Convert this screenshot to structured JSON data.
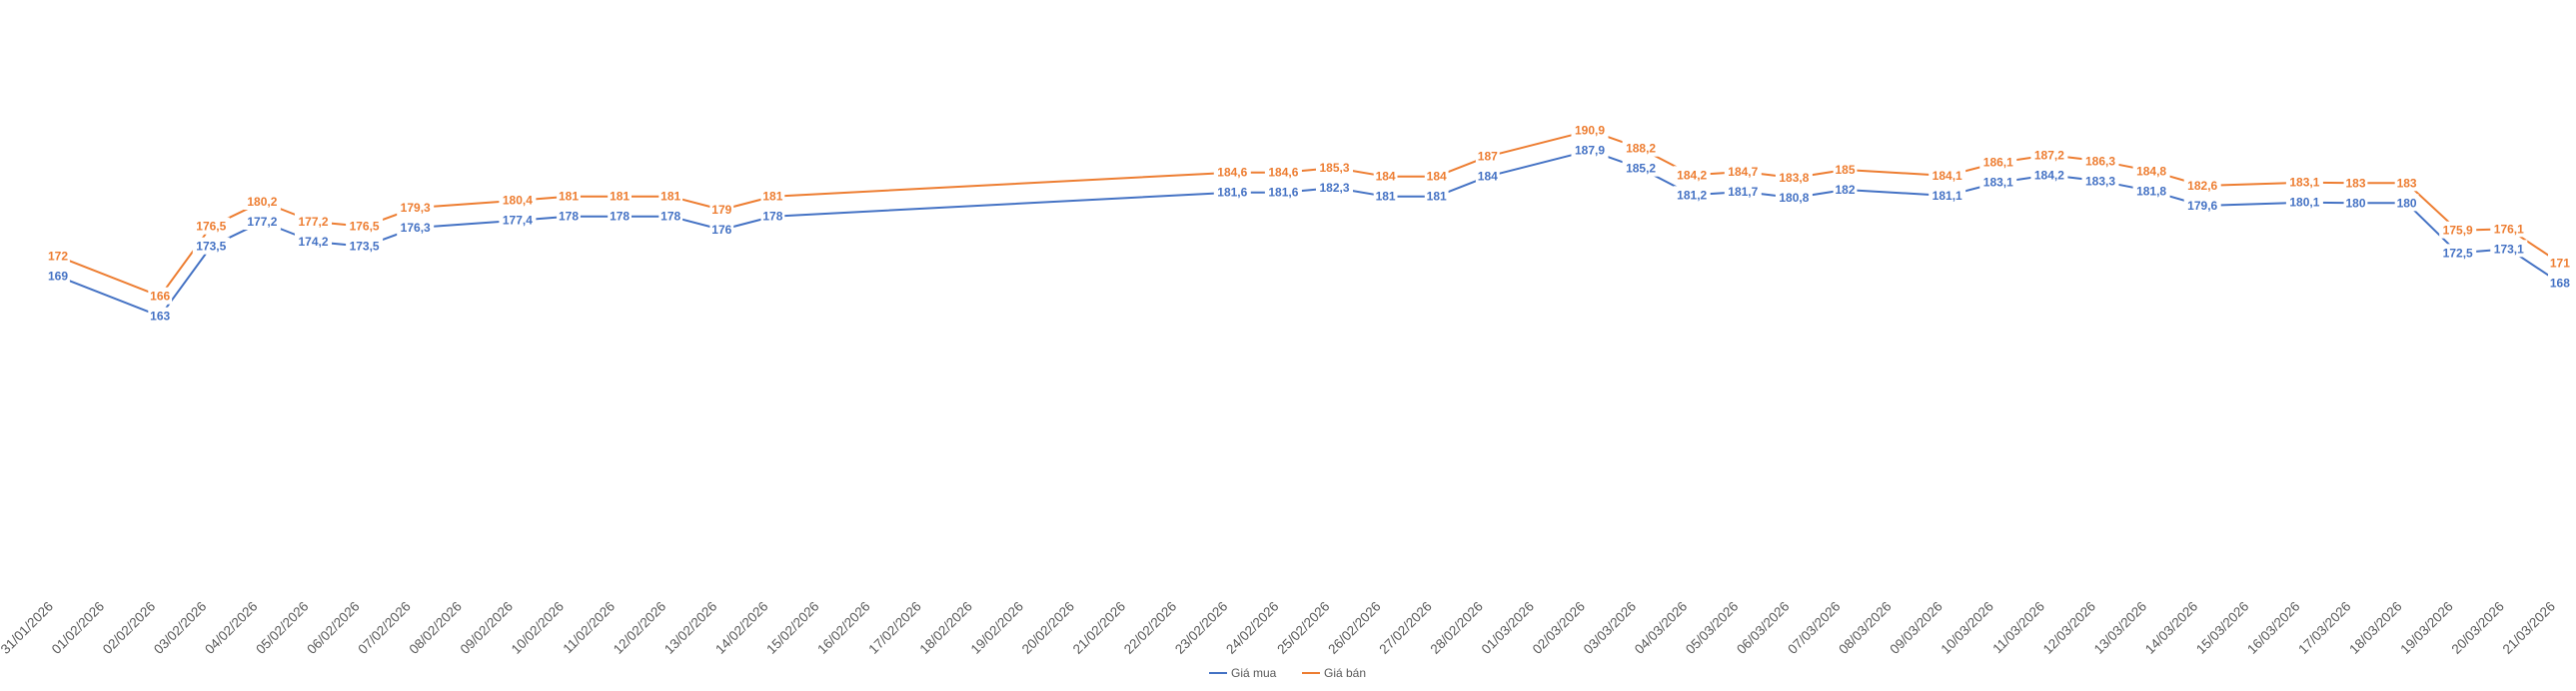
{
  "chart_data": {
    "type": "line",
    "title": "",
    "xlabel": "",
    "ylabel": "",
    "ylim": [
      125,
      200
    ],
    "grid": false,
    "legend_position": "bottom",
    "categories": [
      "31/01/2026",
      "01/02/2026",
      "02/02/2026",
      "03/02/2026",
      "04/02/2026",
      "05/02/2026",
      "06/02/2026",
      "07/02/2026",
      "08/02/2026",
      "09/02/2026",
      "10/02/2026",
      "11/02/2026",
      "12/02/2026",
      "13/02/2026",
      "14/02/2026",
      "15/02/2026",
      "16/02/2026",
      "17/02/2026",
      "18/02/2026",
      "19/02/2026",
      "20/02/2026",
      "21/02/2026",
      "22/02/2026",
      "23/02/2026",
      "24/02/2026",
      "25/02/2026",
      "26/02/2026",
      "27/02/2026",
      "28/02/2026",
      "01/03/2026",
      "02/03/2026",
      "03/03/2026",
      "04/03/2026",
      "05/03/2026",
      "06/03/2026",
      "07/03/2026",
      "08/03/2026",
      "09/03/2026",
      "10/03/2026",
      "11/03/2026",
      "12/03/2026",
      "13/03/2026",
      "14/03/2026",
      "15/03/2026",
      "16/03/2026",
      "17/03/2026",
      "18/03/2026",
      "19/03/2026",
      "20/03/2026",
      "21/03/2026"
    ],
    "series": [
      {
        "name": "Giá mua",
        "color": "#4472C4",
        "points": [
          [
            0,
            169,
            "169"
          ],
          [
            2,
            163,
            "163"
          ],
          [
            3,
            173.5,
            "173,5"
          ],
          [
            4,
            177.2,
            "177,2"
          ],
          [
            5,
            174.2,
            "174,2"
          ],
          [
            6,
            173.5,
            "173,5"
          ],
          [
            7,
            176.3,
            "176,3"
          ],
          [
            9,
            177.4,
            "177,4"
          ],
          [
            10,
            178,
            "178"
          ],
          [
            11,
            178,
            "178"
          ],
          [
            12,
            178,
            "178"
          ],
          [
            13,
            176,
            "176"
          ],
          [
            14,
            178,
            "178"
          ],
          [
            23,
            181.6,
            "181,6"
          ],
          [
            24,
            181.6,
            "181,6"
          ],
          [
            25,
            182.3,
            "182,3"
          ],
          [
            26,
            181,
            "181"
          ],
          [
            27,
            181,
            "181"
          ],
          [
            28,
            184,
            "184"
          ],
          [
            30,
            187.9,
            "187,9"
          ],
          [
            31,
            185.2,
            "185,2"
          ],
          [
            32,
            181.2,
            "181,2"
          ],
          [
            33,
            181.7,
            "181,7"
          ],
          [
            34,
            180.8,
            "180,8"
          ],
          [
            35,
            182,
            "182"
          ],
          [
            37,
            181.1,
            "181,1"
          ],
          [
            38,
            183.1,
            "183,1"
          ],
          [
            39,
            184.2,
            "184,2"
          ],
          [
            40,
            183.3,
            "183,3"
          ],
          [
            41,
            181.8,
            "181,8"
          ],
          [
            42,
            179.6,
            "179,6"
          ],
          [
            44,
            180.1,
            "180,1"
          ],
          [
            45,
            180,
            "180"
          ],
          [
            46,
            180,
            "180"
          ],
          [
            47,
            172.5,
            "172,5"
          ],
          [
            48,
            173.1,
            "173,1"
          ],
          [
            49,
            168,
            "168"
          ]
        ]
      },
      {
        "name": "Giá bán",
        "color": "#ED7D31",
        "points": [
          [
            0,
            172,
            "172"
          ],
          [
            2,
            166,
            "166"
          ],
          [
            3,
            176.5,
            "176,5"
          ],
          [
            4,
            180.2,
            "180,2"
          ],
          [
            5,
            177.2,
            "177,2"
          ],
          [
            6,
            176.5,
            "176,5"
          ],
          [
            7,
            179.3,
            "179,3"
          ],
          [
            9,
            180.4,
            "180,4"
          ],
          [
            10,
            181,
            "181"
          ],
          [
            11,
            181,
            "181"
          ],
          [
            12,
            181,
            "181"
          ],
          [
            13,
            179,
            "179"
          ],
          [
            14,
            181,
            "181"
          ],
          [
            23,
            184.6,
            "184,6"
          ],
          [
            24,
            184.6,
            "184,6"
          ],
          [
            25,
            185.3,
            "185,3"
          ],
          [
            26,
            184,
            "184"
          ],
          [
            27,
            184,
            "184"
          ],
          [
            28,
            187,
            "187"
          ],
          [
            30,
            190.9,
            "190,9"
          ],
          [
            31,
            188.2,
            "188,2"
          ],
          [
            32,
            184.2,
            "184,2"
          ],
          [
            33,
            184.7,
            "184,7"
          ],
          [
            34,
            183.8,
            "183,8"
          ],
          [
            35,
            185,
            "185"
          ],
          [
            37,
            184.1,
            "184,1"
          ],
          [
            38,
            186.1,
            "186,1"
          ],
          [
            39,
            187.2,
            "187,2"
          ],
          [
            40,
            186.3,
            "186,3"
          ],
          [
            41,
            184.8,
            "184,8"
          ],
          [
            42,
            182.6,
            "182,6"
          ],
          [
            44,
            183.1,
            "183,1"
          ],
          [
            45,
            183,
            "183"
          ],
          [
            46,
            183,
            "183"
          ],
          [
            47,
            175.9,
            "175,9"
          ],
          [
            48,
            176.1,
            "176,1"
          ],
          [
            49,
            171,
            "171"
          ]
        ]
      }
    ]
  }
}
